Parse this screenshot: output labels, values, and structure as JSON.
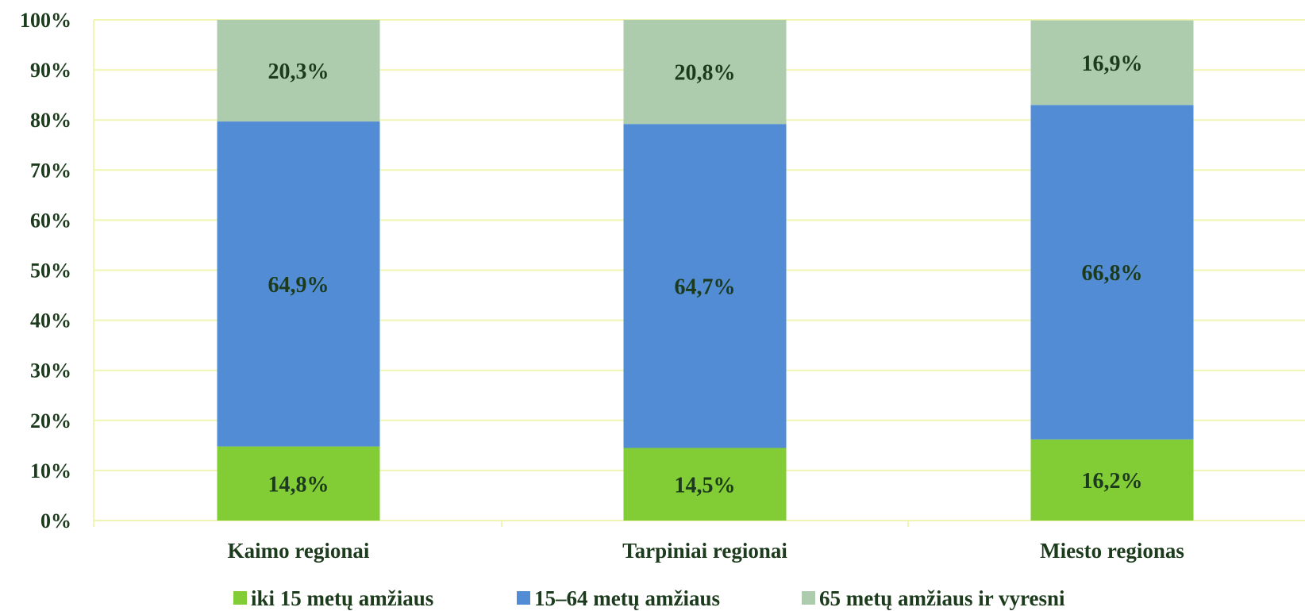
{
  "chart_data": {
    "type": "bar",
    "stacked": true,
    "categories": [
      "Kaimo regionai",
      "Tarpiniai regionai",
      "Miesto regionas"
    ],
    "series": [
      {
        "name": "iki 15 metų amžiaus",
        "values": [
          14.8,
          14.5,
          16.2
        ],
        "labels": [
          "14,8%",
          "14,5%",
          "16,2%"
        ],
        "color": "#82cc36"
      },
      {
        "name": "15–64 metų amžiaus",
        "values": [
          64.9,
          64.7,
          66.8
        ],
        "labels": [
          "64,9%",
          "64,7%",
          "66,8%"
        ],
        "color": "#518cd4"
      },
      {
        "name": "65 metų amžiaus ir vyresni",
        "values": [
          20.3,
          20.8,
          16.9
        ],
        "labels": [
          "20,3%",
          "20,8%",
          "16,9%"
        ],
        "color": "#adcbad"
      }
    ],
    "ylim": [
      0,
      100
    ],
    "yticks": [
      0,
      10,
      20,
      30,
      40,
      50,
      60,
      70,
      80,
      90,
      100
    ],
    "ytick_labels": [
      "0%",
      "10%",
      "20%",
      "30%",
      "40%",
      "50%",
      "60%",
      "70%",
      "80%",
      "90%",
      "100%"
    ],
    "grid": true,
    "grid_color": "#f1f5b4",
    "legend_position": "bottom"
  }
}
